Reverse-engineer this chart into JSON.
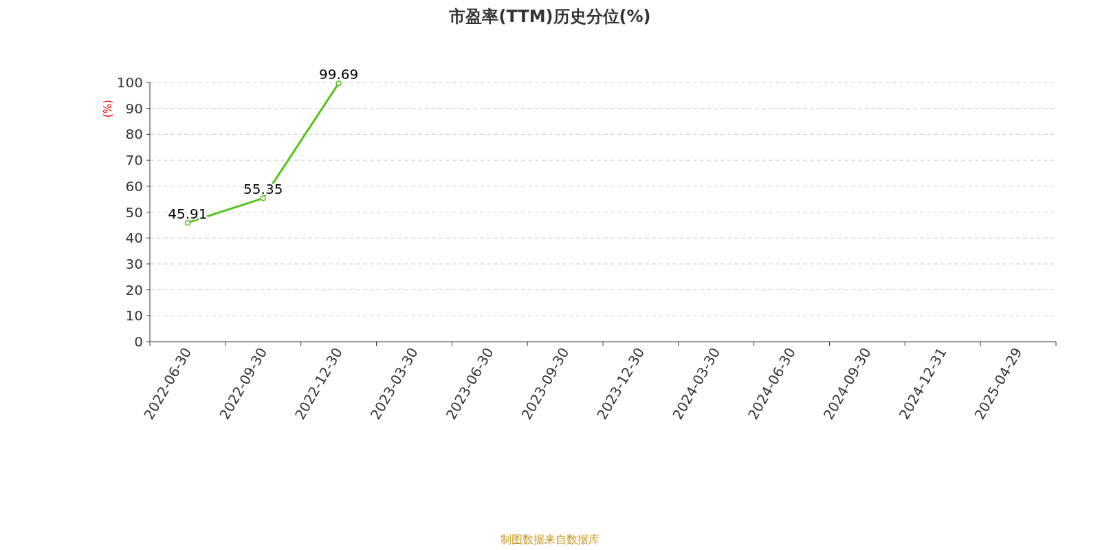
{
  "chart_data": {
    "type": "line",
    "title": "市盈率(TTM)历史分位(%)",
    "ylabel": "(%)",
    "categories": [
      "2022-06-30",
      "2022-09-30",
      "2022-12-30",
      "2023-03-30",
      "2023-06-30",
      "2023-09-30",
      "2023-12-30",
      "2024-03-30",
      "2024-06-30",
      "2024-09-30",
      "2024-12-31",
      "2025-04-29"
    ],
    "series": [
      {
        "color": "#52c41a",
        "values": [
          45.91,
          55.35,
          99.69,
          null,
          null,
          null,
          null,
          null,
          null,
          null,
          null,
          null
        ]
      }
    ],
    "ylim": [
      0,
      100
    ],
    "yticks": [
      0,
      10,
      20,
      30,
      40,
      50,
      60,
      70,
      80,
      90,
      100
    ],
    "grid": "y",
    "marker": "circle",
    "data_labels": true,
    "annotations": [
      "制图数据来自数据库"
    ]
  }
}
